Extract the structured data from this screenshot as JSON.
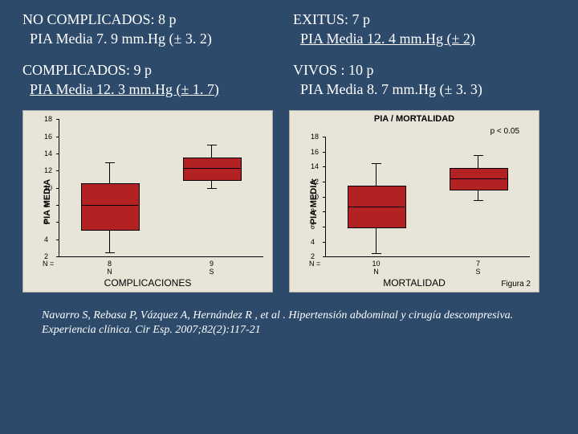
{
  "text": {
    "no_complicados_title": "NO COMPLICADOS: 8 p",
    "no_complicados_val": "PIA Media 7. 9 mm.Hg (± 3. 2)",
    "exitus_title": "EXITUS: 7 p",
    "exitus_val": "PIA Media 12. 4 mm.Hg (±  2)",
    "complicados_title": "COMPLICADOS: 9 p",
    "complicados_val": "PIA Media  12. 3 mm.Hg (± 1. 7)",
    "vivos_title": "VIVOS : 10  p",
    "vivos_val": "PIA Media  8. 7 mm.Hg (± 3. 3)",
    "citation": "Navarro S, Rebasa P, Vázquez A, Hernández R , et al . Hipertensión abdominal y cirugía descompresiva. Experiencia clínica. Cir Esp. 2007;82(2):117-21"
  },
  "chart1": {
    "type": "boxplot",
    "y_label": "PIA MEDIA",
    "x_label": "COMPLICACIONES",
    "background_color": "#e8e4d8",
    "box_color": "#b22222",
    "ylim": [
      2,
      18
    ],
    "yticks": [
      2,
      4,
      6,
      8,
      10,
      12,
      14,
      16,
      18
    ],
    "categories": [
      "N",
      "S"
    ],
    "n_values": [
      8,
      9
    ],
    "boxes": [
      {
        "cat": "N",
        "q1": 5.2,
        "median": 8.0,
        "q3": 10.5,
        "low": 2.5,
        "high": 13.0
      },
      {
        "cat": "S",
        "q1": 11.0,
        "median": 12.3,
        "q3": 13.5,
        "low": 10.0,
        "high": 15.0
      }
    ]
  },
  "chart2": {
    "type": "boxplot",
    "title": "PIA / MORTALIDAD",
    "p_text": "p < 0.05",
    "y_label": "PIA MEDIA",
    "x_label": "MORTALIDAD",
    "fig_label": "Figura 2",
    "background_color": "#e8e4d8",
    "box_color": "#b22222",
    "ylim": [
      2,
      18
    ],
    "yticks": [
      2,
      4,
      6,
      8,
      10,
      12,
      14,
      16,
      18
    ],
    "categories": [
      "N",
      "S"
    ],
    "n_values": [
      10,
      7
    ],
    "boxes": [
      {
        "cat": "N",
        "q1": 6.0,
        "median": 8.7,
        "q3": 11.5,
        "low": 2.5,
        "high": 14.5
      },
      {
        "cat": "S",
        "q1": 11.0,
        "median": 12.4,
        "q3": 13.8,
        "low": 9.5,
        "high": 15.5
      }
    ]
  }
}
